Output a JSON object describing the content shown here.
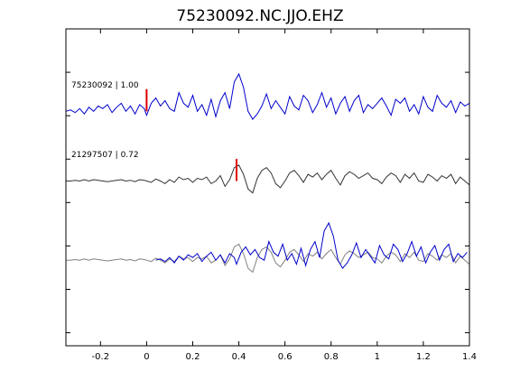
{
  "chart_data": {
    "type": "line",
    "title": "75230092.NC.JJO.EHZ",
    "xlabel": "",
    "ylabel": "",
    "xlim": [
      -0.35,
      1.4
    ],
    "xticks": [
      -0.2,
      0,
      0.2,
      0.4,
      0.6,
      0.8,
      1,
      1.2,
      1.4
    ],
    "xtick_labels": [
      "-0.2",
      "0",
      "0.2",
      "0.4",
      "0.6",
      "0.8",
      "1",
      "1.2",
      "1.4"
    ],
    "ylim": [
      0,
      1
    ],
    "grid": false,
    "traces": [
      {
        "id": "trace-master",
        "label": "75230092 | 1.00",
        "color": "#0000cc",
        "offset": 0.74,
        "pick_time": 0.0,
        "pick_color": "#dd0000",
        "x": [
          -0.35,
          -0.33,
          -0.31,
          -0.29,
          -0.27,
          -0.25,
          -0.23,
          -0.21,
          -0.19,
          -0.17,
          -0.15,
          -0.13,
          -0.11,
          -0.09,
          -0.07,
          -0.05,
          -0.03,
          -0.01,
          0.0,
          0.02,
          0.04,
          0.06,
          0.08,
          0.1,
          0.12,
          0.14,
          0.16,
          0.18,
          0.2,
          0.22,
          0.24,
          0.26,
          0.28,
          0.3,
          0.32,
          0.34,
          0.36,
          0.38,
          0.4,
          0.42,
          0.44,
          0.46,
          0.48,
          0.5,
          0.52,
          0.54,
          0.56,
          0.58,
          0.6,
          0.62,
          0.64,
          0.66,
          0.68,
          0.7,
          0.72,
          0.74,
          0.76,
          0.78,
          0.8,
          0.82,
          0.84,
          0.86,
          0.88,
          0.9,
          0.92,
          0.94,
          0.96,
          0.98,
          1.0,
          1.02,
          1.04,
          1.06,
          1.08,
          1.1,
          1.12,
          1.14,
          1.16,
          1.18,
          1.2,
          1.22,
          1.24,
          1.26,
          1.28,
          1.3,
          1.32,
          1.34,
          1.36,
          1.38,
          1.4
        ],
        "y": [
          0.0,
          0.01,
          -0.01,
          0.02,
          -0.02,
          0.03,
          0.0,
          0.04,
          0.02,
          0.05,
          -0.01,
          0.03,
          0.06,
          0.0,
          0.04,
          -0.02,
          0.05,
          0.02,
          -0.03,
          0.06,
          0.1,
          0.04,
          0.08,
          0.02,
          0.0,
          0.14,
          0.06,
          0.03,
          0.12,
          0.0,
          0.05,
          -0.03,
          0.09,
          -0.04,
          0.08,
          0.14,
          0.02,
          0.22,
          0.28,
          0.18,
          0.0,
          -0.06,
          -0.02,
          0.04,
          0.13,
          0.02,
          0.08,
          0.03,
          -0.02,
          0.11,
          0.04,
          0.01,
          0.12,
          0.08,
          -0.01,
          0.05,
          0.14,
          0.03,
          0.1,
          -0.02,
          0.06,
          0.11,
          0.0,
          0.08,
          0.12,
          -0.01,
          0.05,
          0.02,
          0.06,
          0.1,
          0.04,
          -0.03,
          0.09,
          0.06,
          0.1,
          0.0,
          0.05,
          -0.02,
          0.11,
          0.03,
          0.0,
          0.12,
          0.06,
          0.03,
          0.08,
          -0.01,
          0.07,
          0.04,
          0.06
        ]
      },
      {
        "id": "trace-secondary",
        "label": "21297507 | 0.72",
        "color": "#333333",
        "offset": 0.52,
        "pick_time": 0.39,
        "pick_color": "#dd0000",
        "x": [
          -0.35,
          -0.33,
          -0.31,
          -0.29,
          -0.27,
          -0.25,
          -0.23,
          -0.21,
          -0.19,
          -0.17,
          -0.15,
          -0.13,
          -0.11,
          -0.09,
          -0.07,
          -0.05,
          -0.03,
          -0.01,
          0.0,
          0.02,
          0.04,
          0.06,
          0.08,
          0.1,
          0.12,
          0.14,
          0.16,
          0.18,
          0.2,
          0.22,
          0.24,
          0.26,
          0.28,
          0.3,
          0.32,
          0.34,
          0.36,
          0.38,
          0.4,
          0.42,
          0.44,
          0.46,
          0.48,
          0.5,
          0.52,
          0.54,
          0.56,
          0.58,
          0.6,
          0.62,
          0.64,
          0.66,
          0.68,
          0.7,
          0.72,
          0.74,
          0.76,
          0.78,
          0.8,
          0.82,
          0.84,
          0.86,
          0.88,
          0.9,
          0.92,
          0.94,
          0.96,
          0.98,
          1.0,
          1.02,
          1.04,
          1.06,
          1.08,
          1.1,
          1.12,
          1.14,
          1.16,
          1.18,
          1.2,
          1.22,
          1.24,
          1.26,
          1.28,
          1.3,
          1.32,
          1.34,
          1.36,
          1.38,
          1.4
        ],
        "y": [
          0.0,
          0.0,
          0.005,
          0.0,
          0.01,
          0.0,
          0.01,
          0.005,
          0.0,
          -0.005,
          0.0,
          0.005,
          0.01,
          0.0,
          0.005,
          -0.005,
          0.01,
          0.005,
          0.0,
          -0.01,
          0.015,
          0.0,
          -0.02,
          0.01,
          -0.01,
          0.03,
          0.01,
          0.02,
          -0.01,
          0.02,
          0.01,
          0.03,
          -0.02,
          0.0,
          0.04,
          -0.04,
          0.01,
          0.1,
          0.12,
          0.05,
          -0.06,
          -0.09,
          0.02,
          0.08,
          0.1,
          0.06,
          -0.02,
          -0.05,
          0.0,
          0.06,
          0.08,
          0.04,
          -0.01,
          0.05,
          0.03,
          0.06,
          0.01,
          0.05,
          0.08,
          0.02,
          -0.03,
          0.04,
          0.07,
          0.05,
          0.02,
          0.04,
          0.06,
          0.02,
          0.01,
          -0.02,
          0.03,
          0.06,
          0.04,
          -0.01,
          0.05,
          0.02,
          0.06,
          0.0,
          -0.01,
          0.05,
          0.03,
          0.0,
          0.04,
          0.02,
          0.05,
          -0.02,
          0.03,
          0.0,
          -0.03
        ]
      }
    ],
    "overlay": {
      "id": "overlay",
      "offset": 0.27,
      "series": [
        {
          "ref": "trace-secondary",
          "color": "#808080"
        },
        {
          "ref": "trace-master",
          "color": "#0000cc"
        }
      ],
      "master_shift": -0.34
    }
  }
}
